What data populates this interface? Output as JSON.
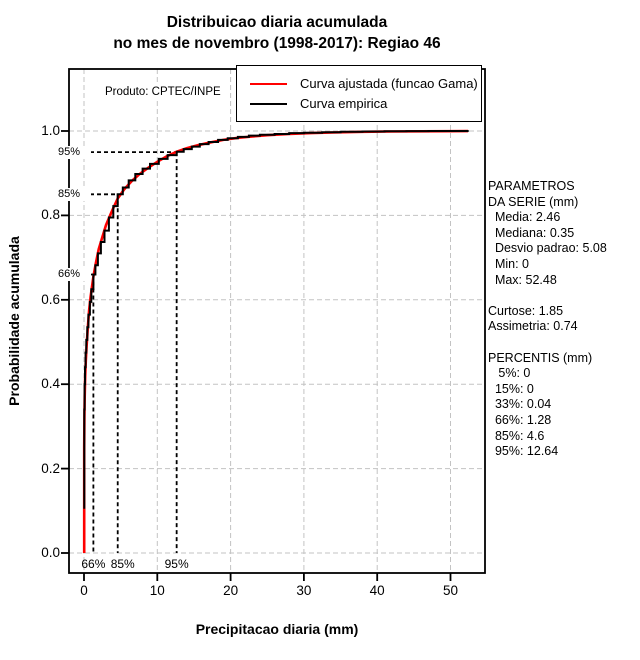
{
  "title": {
    "line1": "Distribuicao diaria acumulada",
    "line2": "no mes de novembro (1998-2017): Regiao 46"
  },
  "chart_data": {
    "type": "line",
    "title": "Distribuicao diaria acumulada no mes de novembro (1998-2017): Regiao 46",
    "xlabel": "Precipitacao diaria (mm)",
    "ylabel": "Probabilidade acumulada",
    "x_ticks": [
      0,
      10,
      20,
      30,
      40,
      50
    ],
    "y_ticks": [
      "0.0",
      "0.2",
      "0.4",
      "0.6",
      "0.8",
      "1.0"
    ],
    "xlim": [
      0,
      52.5
    ],
    "ylim": [
      0,
      1.0
    ],
    "grid": true,
    "grid_color": "#c3c3c3",
    "annotation": "Produto: CPTEC/INPE",
    "legend": [
      {
        "label": "Curva ajustada (funcao Gama)",
        "color": "#ff0000"
      },
      {
        "label": "Curva empirica",
        "color": "#000000"
      }
    ],
    "percentile_guides": [
      {
        "label": "95%",
        "prob": 0.95,
        "x_mm": 12.64
      },
      {
        "label": "85%",
        "prob": 0.85,
        "x_mm": 4.6
      },
      {
        "label": "66%",
        "prob": 0.66,
        "x_mm": 1.28
      }
    ],
    "series": [
      {
        "name": "Curva ajustada (funcao Gama)",
        "color": "#ff0000",
        "step": false,
        "points": [
          [
            0.03,
            0
          ],
          [
            0.03,
            0.25
          ],
          [
            0.06,
            0.32
          ],
          [
            0.1,
            0.37
          ],
          [
            0.16,
            0.42
          ],
          [
            0.25,
            0.455
          ],
          [
            0.35,
            0.49
          ],
          [
            0.5,
            0.53
          ],
          [
            0.7,
            0.575
          ],
          [
            0.9,
            0.607
          ],
          [
            1.28,
            0.655
          ],
          [
            1.6,
            0.685
          ],
          [
            2.0,
            0.72
          ],
          [
            2.5,
            0.748
          ],
          [
            3.0,
            0.777
          ],
          [
            3.8,
            0.81
          ],
          [
            4.6,
            0.84
          ],
          [
            5.5,
            0.862
          ],
          [
            6.5,
            0.881
          ],
          [
            7.5,
            0.897
          ],
          [
            8.7,
            0.912
          ],
          [
            10,
            0.927
          ],
          [
            11.3,
            0.94
          ],
          [
            12.64,
            0.951
          ],
          [
            14,
            0.959
          ],
          [
            15.5,
            0.966
          ],
          [
            17,
            0.972
          ],
          [
            19,
            0.979
          ],
          [
            21,
            0.984
          ],
          [
            23,
            0.987
          ],
          [
            25,
            0.99
          ],
          [
            28,
            0.993
          ],
          [
            31,
            0.995
          ],
          [
            34,
            0.9965
          ],
          [
            38,
            0.998
          ],
          [
            42,
            0.9987
          ],
          [
            46,
            0.9992
          ],
          [
            50,
            0.9996
          ],
          [
            52.4,
            0.9998
          ]
        ]
      },
      {
        "name": "Curva empirica",
        "color": "#000000",
        "step": true,
        "points": [
          [
            0.04,
            0.105
          ],
          [
            0.04,
            0.34
          ],
          [
            0.08,
            0.4
          ],
          [
            0.14,
            0.44
          ],
          [
            0.22,
            0.475
          ],
          [
            0.32,
            0.505
          ],
          [
            0.45,
            0.535
          ],
          [
            0.6,
            0.565
          ],
          [
            0.8,
            0.595
          ],
          [
            1.0,
            0.625
          ],
          [
            1.28,
            0.66
          ],
          [
            1.55,
            0.682
          ],
          [
            1.9,
            0.71
          ],
          [
            2.3,
            0.737
          ],
          [
            2.8,
            0.764
          ],
          [
            3.4,
            0.795
          ],
          [
            4.0,
            0.822
          ],
          [
            4.6,
            0.85
          ],
          [
            5.3,
            0.866
          ],
          [
            6.1,
            0.883
          ],
          [
            7.0,
            0.898
          ],
          [
            8.0,
            0.911
          ],
          [
            9.0,
            0.922
          ],
          [
            10.2,
            0.934
          ],
          [
            11.4,
            0.943
          ],
          [
            12.64,
            0.951
          ],
          [
            13.6,
            0.957
          ],
          [
            14.7,
            0.963
          ],
          [
            15.8,
            0.969
          ],
          [
            17,
            0.974
          ],
          [
            18.3,
            0.979
          ],
          [
            19.6,
            0.983
          ],
          [
            21,
            0.986
          ],
          [
            22.5,
            0.989
          ],
          [
            24,
            0.991
          ],
          [
            26,
            0.993
          ],
          [
            28,
            0.995
          ],
          [
            30,
            0.996
          ],
          [
            32.5,
            0.997
          ],
          [
            35,
            0.998
          ],
          [
            38,
            0.9987
          ],
          [
            41,
            0.9993
          ],
          [
            44,
            0.9997
          ],
          [
            47,
            1.0
          ],
          [
            52.48,
            1.0
          ]
        ]
      }
    ]
  },
  "side_panel": {
    "lines": [
      "PARAMETROS",
      "DA SERIE (mm)",
      "  Media: 2.46",
      "  Mediana: 0.35",
      "  Desvio padrao: 5.08",
      "  Min: 0",
      "  Max: 52.48",
      "",
      "Curtose: 1.85",
      "Assimetria: 0.74",
      "",
      "PERCENTIS (mm)",
      "   5%: 0",
      "  15%: 0",
      "  33%: 0.04",
      "  66%: 1.28",
      "  85%: 4.6",
      "  95%: 12.64"
    ]
  }
}
